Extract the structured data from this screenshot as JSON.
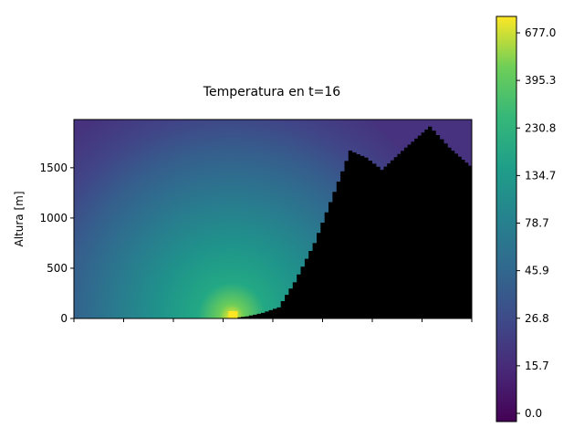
{
  "chart_data": {
    "type": "heatmap",
    "title": "Temperatura en t=16",
    "xlabel": "",
    "ylabel": "Altura [m]",
    "ylim": [
      0,
      1980
    ],
    "y_ticks": [
      0,
      500,
      1000,
      1500
    ],
    "x_tick_count": 9,
    "x_tick_labels_visible": false,
    "x_range_fraction": [
      0,
      1
    ],
    "colormap": "viridis",
    "terrain_color": "#000000",
    "colorbar": {
      "position": "right",
      "tick_labels": [
        "677.0",
        "395.3",
        "230.8",
        "134.7",
        "78.7",
        "45.9",
        "26.8",
        "15.7",
        "0.0"
      ],
      "min": 0.0,
      "max": 677.0
    },
    "heat_source": {
      "x_fraction": 0.4,
      "y_m": 0,
      "value": 677.0
    },
    "terrain_profile": [
      {
        "x": 0.0,
        "y": 0
      },
      {
        "x": 0.38,
        "y": 0
      },
      {
        "x": 0.43,
        "y": 20
      },
      {
        "x": 0.47,
        "y": 55
      },
      {
        "x": 0.51,
        "y": 110
      },
      {
        "x": 0.55,
        "y": 360
      },
      {
        "x": 0.6,
        "y": 750
      },
      {
        "x": 0.65,
        "y": 1260
      },
      {
        "x": 0.69,
        "y": 1670
      },
      {
        "x": 0.73,
        "y": 1600
      },
      {
        "x": 0.77,
        "y": 1480
      },
      {
        "x": 0.83,
        "y": 1700
      },
      {
        "x": 0.89,
        "y": 1910
      },
      {
        "x": 0.94,
        "y": 1700
      },
      {
        "x": 1.0,
        "y": 1490
      }
    ]
  }
}
